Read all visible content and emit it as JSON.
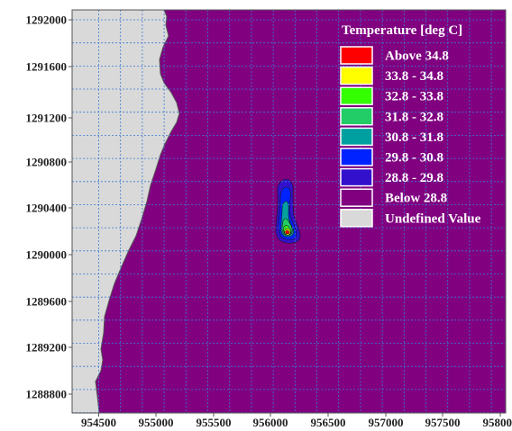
{
  "map": {
    "background_color": "#800080",
    "land_color": "#d9d9d9",
    "grid_color": "#3a7bd5",
    "x_ticks": [
      "954500",
      "955000",
      "955500",
      "956000",
      "956500",
      "957000",
      "957500",
      "958000"
    ],
    "y_ticks": [
      "1292000",
      "1291600",
      "1291200",
      "1290800",
      "1290400",
      "1290000",
      "1289600",
      "1289200",
      "1288800"
    ]
  },
  "legend": {
    "title": "Temperature [deg C]",
    "items": [
      {
        "label": "Above 34.8",
        "color": "#ff0000"
      },
      {
        "label": "33.8 - 34.8",
        "color": "#ffff00"
      },
      {
        "label": "32.8 - 33.8",
        "color": "#33ff00"
      },
      {
        "label": "31.8 - 32.8",
        "color": "#22cc66"
      },
      {
        "label": "30.8 - 31.8",
        "color": "#00a0a0"
      },
      {
        "label": "29.8 - 30.8",
        "color": "#0022ff"
      },
      {
        "label": "28.8 - 29.8",
        "color": "#3311cc"
      },
      {
        "label": "Below  28.8",
        "color": "#800080"
      },
      {
        "label": "Undefined Value",
        "color": "#d9d9d9"
      }
    ]
  }
}
